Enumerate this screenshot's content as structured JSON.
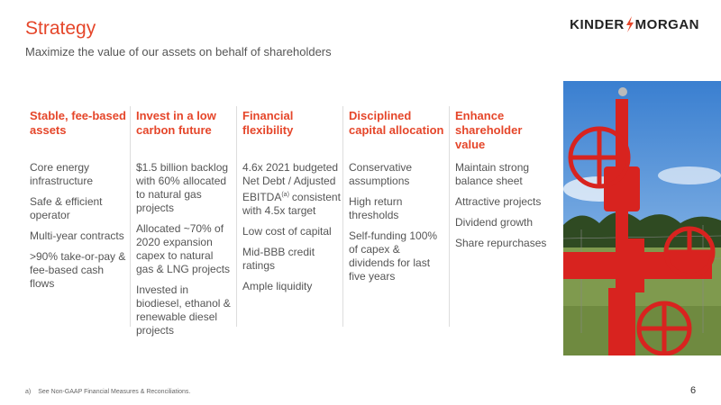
{
  "header": {
    "title": "Strategy",
    "subtitle": "Maximize the value of our assets on behalf of shareholders",
    "logo": [
      "KINDER",
      "MORGAN"
    ]
  },
  "columns": [
    {
      "heading": "Stable, fee-based assets",
      "items": [
        "Core energy infrastructure",
        "Safe & efficient operator",
        "Multi-year contracts",
        ">90% take-or-pay & fee-based cash flows"
      ]
    },
    {
      "heading": "Invest in a low carbon future",
      "items": [
        "$1.5 billion backlog with 60% allocated to natural gas projects",
        "Allocated ~70% of 2020 expansion capex to natural gas & LNG projects",
        "Invested in biodiesel, ethanol & renewable diesel projects"
      ]
    },
    {
      "heading": "Financial flexibility",
      "items": [
        [
          "4.6x 2021 budgeted Net Debt / Adjusted EBITDA",
          "(a)",
          "consistent with 4.5x target"
        ],
        "Low cost of capital",
        "Mid-BBB credit ratings",
        "Ample liquidity"
      ]
    },
    {
      "heading": "Disciplined capital allocation",
      "items": [
        "Conservative assumptions",
        "High return thresholds",
        "Self-funding 100% of capex & dividends for last five years"
      ]
    },
    {
      "heading": "Enhance shareholder value",
      "items": [
        "Maintain strong balance sheet",
        "Attractive projects",
        "Dividend growth",
        "Share repurchases"
      ]
    }
  ],
  "footer": {
    "note_marker": "a)",
    "note": "See Non-GAAP Financial Measures & Reconciliations.",
    "page": "6"
  }
}
